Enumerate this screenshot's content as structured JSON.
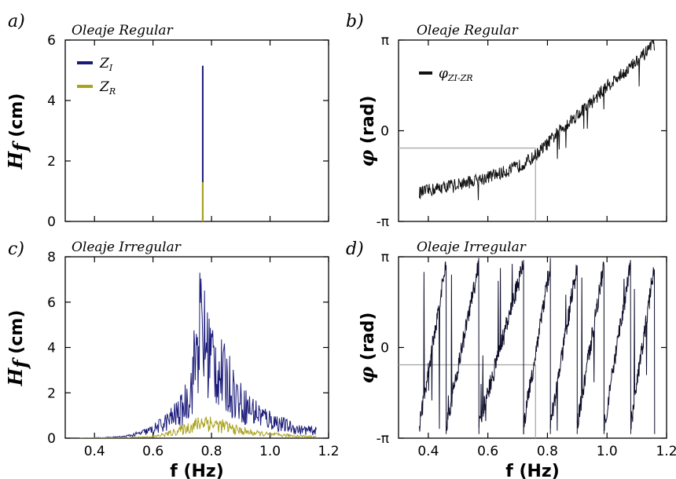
{
  "chart_data": [
    {
      "id": "a",
      "type": "line",
      "panel_label": "a)",
      "title": "Oleaje Regular",
      "ylabel_main": "H",
      "ylabel_sub": "f",
      "ylabel_unit": " (cm)",
      "xlabel": "",
      "xlim": [
        0.3,
        1.2
      ],
      "ylim": [
        0,
        6
      ],
      "xticks": [
        0.4,
        0.6,
        0.8,
        1.0,
        1.2
      ],
      "xticklabels": [],
      "yticks": [
        0,
        2,
        4,
        6
      ],
      "yticklabels": [
        "0",
        "2",
        "4",
        "6"
      ],
      "legend_position": "top-left",
      "series": [
        {
          "name": "Z",
          "name_sub": "I",
          "color": "#1a1a7a",
          "spike": {
            "x": 0.77,
            "y": 5.15
          }
        },
        {
          "name": "Z",
          "name_sub": "R",
          "color": "#aaa31c",
          "spike": {
            "x": 0.77,
            "y": 1.3
          }
        }
      ]
    },
    {
      "id": "b",
      "type": "line",
      "panel_label": "b)",
      "title": "Oleaje Regular",
      "ylabel_main": "φ",
      "ylabel_unit": " (rad)",
      "xlabel": "",
      "xlim": [
        0.3,
        1.2
      ],
      "ylim": [
        -3.1416,
        3.1416
      ],
      "xticks": [
        0.4,
        0.6,
        0.8,
        1.0,
        1.2
      ],
      "xticklabels": [],
      "yticks": [
        -3.1416,
        0,
        3.1416
      ],
      "yticklabels": [
        "-π",
        "0",
        "π"
      ],
      "legend_position": "top-left",
      "series": [
        {
          "name": "φ",
          "name_sub": "ZI-ZR",
          "color": "#111111",
          "x": [
            0.37,
            0.45,
            0.55,
            0.65,
            0.7,
            0.75,
            0.8,
            0.85,
            0.9,
            0.95,
            1.0,
            1.05,
            1.1,
            1.16
          ],
          "y": [
            -2.15,
            -1.95,
            -1.75,
            -1.45,
            -1.25,
            -0.95,
            -0.45,
            0.1,
            0.55,
            1.0,
            1.55,
            1.95,
            2.4,
            3.0
          ]
        }
      ],
      "reference": {
        "x": 0.76,
        "y": -0.6
      }
    },
    {
      "id": "c",
      "type": "area",
      "panel_label": "c)",
      "title": "Oleaje Irregular",
      "ylabel_main": "H",
      "ylabel_sub": "f",
      "ylabel_unit": " (cm)",
      "xlabel": "f (Hz)",
      "xlim": [
        0.3,
        1.2
      ],
      "ylim": [
        0,
        8
      ],
      "xticks": [
        0.4,
        0.6,
        0.8,
        1.0,
        1.2
      ],
      "xticklabels": [
        "0.4",
        "0.6",
        "0.8",
        "1.0",
        "1.2"
      ],
      "yticks": [
        0,
        2,
        4,
        6,
        8
      ],
      "yticklabels": [
        "0",
        "2",
        "4",
        "6",
        "8"
      ],
      "series": [
        {
          "name": "",
          "color": "#1a1a7a",
          "x": [
            0.35,
            0.45,
            0.5,
            0.55,
            0.6,
            0.65,
            0.7,
            0.73,
            0.76,
            0.78,
            0.8,
            0.83,
            0.86,
            0.9,
            0.95,
            1.0,
            1.05,
            1.1,
            1.16
          ],
          "y": [
            0.0,
            0.05,
            0.1,
            0.3,
            0.6,
            1.2,
            2.0,
            3.5,
            7.9,
            6.5,
            5.8,
            4.5,
            3.8,
            2.5,
            1.8,
            1.3,
            0.9,
            0.6,
            0.5
          ]
        },
        {
          "name": "",
          "color": "#aaa31c",
          "x": [
            0.35,
            0.5,
            0.6,
            0.65,
            0.7,
            0.75,
            0.78,
            0.8,
            0.85,
            0.9,
            0.95,
            1.0,
            1.1,
            1.16
          ],
          "y": [
            0.0,
            0.03,
            0.1,
            0.3,
            0.6,
            0.95,
            1.25,
            1.0,
            0.8,
            0.5,
            0.35,
            0.25,
            0.15,
            0.1
          ]
        }
      ]
    },
    {
      "id": "d",
      "type": "line",
      "panel_label": "d)",
      "title": "Oleaje Irregular",
      "ylabel_main": "φ",
      "ylabel_unit": " (rad)",
      "xlabel": "f (Hz)",
      "xlim": [
        0.3,
        1.2
      ],
      "ylim": [
        -3.1416,
        3.1416
      ],
      "xticks": [
        0.4,
        0.6,
        0.8,
        1.0,
        1.2
      ],
      "xticklabels": [
        "0.4",
        "0.6",
        "0.8",
        "1.0",
        "1.2"
      ],
      "yticks": [
        -3.1416,
        0,
        3.1416
      ],
      "yticklabels": [
        "-π",
        "0",
        "π"
      ],
      "series": [
        {
          "name": "",
          "color": "#0d0d2a",
          "wrap_breaks": [
            0.37,
            0.46,
            0.57,
            0.72,
            0.81,
            0.9,
            0.99,
            1.08,
            1.16
          ]
        }
      ],
      "reference": {
        "x": 0.76,
        "y": -0.6
      }
    }
  ]
}
